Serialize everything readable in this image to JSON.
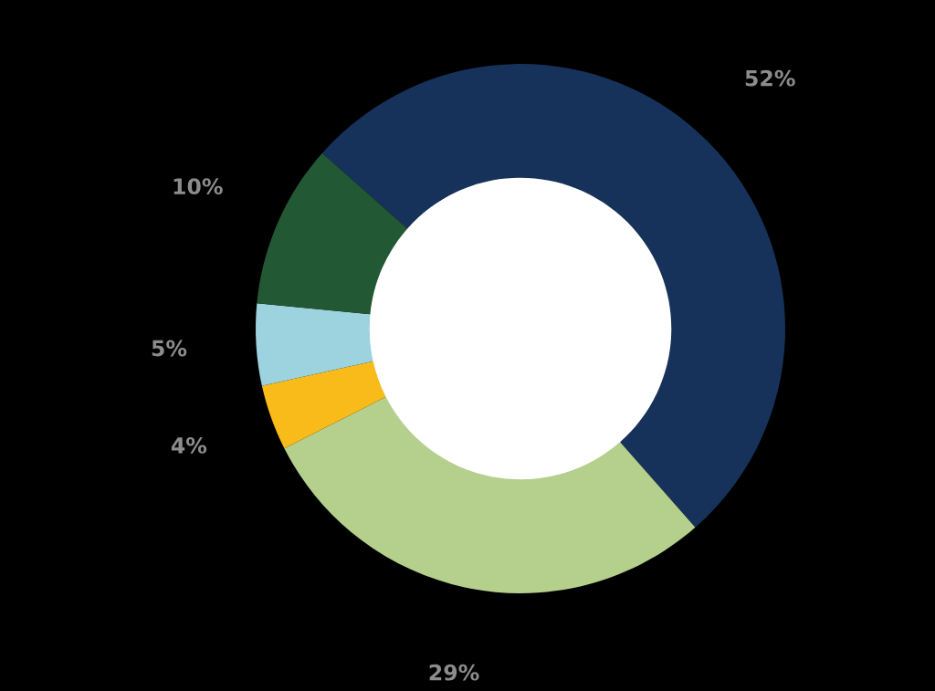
{
  "chart_data": {
    "type": "donut",
    "categories": [
      null,
      null,
      null,
      null,
      null
    ],
    "values": [
      52,
      29,
      4,
      5,
      10
    ],
    "colors": [
      "#17325a",
      "#b5d08c",
      "#f8bb1a",
      "#9dd3de",
      "#225934"
    ],
    "value_labels": [
      "52%",
      "29%",
      "4%",
      "5%",
      "10%"
    ]
  }
}
